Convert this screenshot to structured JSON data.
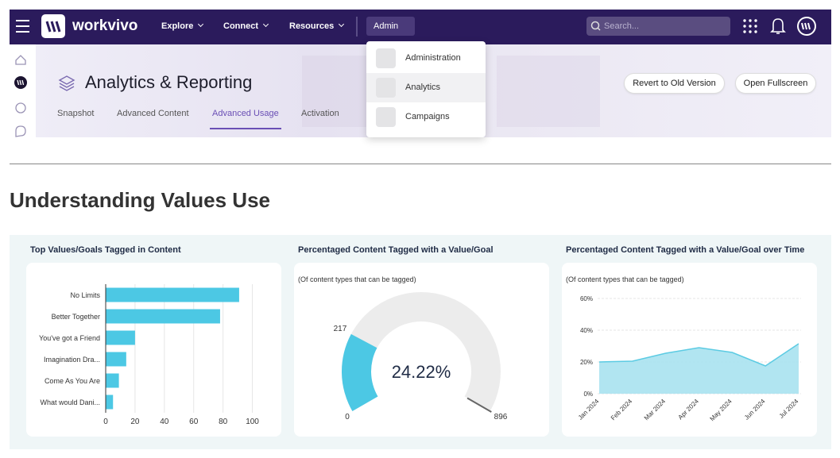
{
  "nav": {
    "brand": "workvivo",
    "items": [
      "Explore",
      "Connect",
      "Resources"
    ],
    "admin": "Admin",
    "search_placeholder": "Search..."
  },
  "dropdown": {
    "items": [
      "Administration",
      "Analytics",
      "Campaigns"
    ],
    "highlighted": 1
  },
  "header": {
    "title": "Analytics & Reporting",
    "tabs": [
      "Snapshot",
      "Advanced Content",
      "Advanced Usage",
      "Activation"
    ],
    "active_tab": 2,
    "buttons": [
      "Revert to Old Version",
      "Open Fullscreen"
    ]
  },
  "section_title": "Understanding Values Use",
  "chart_data": [
    {
      "type": "hbar",
      "title": "Top Values/Goals Tagged in Content",
      "categories": [
        "No Limits",
        "Better Together",
        "You've got a Friend",
        "Imagination Dra...",
        "Come As You Are",
        "What would Dani..."
      ],
      "values": [
        91,
        78,
        20,
        14,
        9,
        5
      ],
      "color": "#4cc8e4",
      "xlim": [
        0,
        110
      ],
      "xticks": [
        0,
        20,
        40,
        60,
        80,
        100
      ],
      "grid": true
    },
    {
      "type": "gauge",
      "title": "Percentaged Content Tagged with a Value/Goal",
      "subtitle": "(Of content types that can be tagged)",
      "value": 217,
      "min": 0,
      "max": 896,
      "center_label": "24.22%",
      "color": "#4cc8e4",
      "track_color": "#ececec"
    },
    {
      "type": "area",
      "title": "Percentaged Content Tagged with a Value/Goal over Time",
      "subtitle": "(Of content types that can be tagged)",
      "categories": [
        "Jan 2024",
        "Feb 2024",
        "Mar 2024",
        "Apr 2024",
        "May 2024",
        "Jun 2024",
        "Jul 2024"
      ],
      "values": [
        20,
        20.5,
        25.5,
        29,
        26,
        17.5,
        31.5
      ],
      "color": "#a9e2f0",
      "line_color": "#5ccbe3",
      "ylim": [
        0,
        60
      ],
      "yticks": [
        {
          "value": 0,
          "label": "0%"
        },
        {
          "value": 20,
          "label": "20%"
        },
        {
          "value": 40,
          "label": "40%"
        },
        {
          "value": 60,
          "label": "60%"
        }
      ],
      "grid": true
    }
  ]
}
